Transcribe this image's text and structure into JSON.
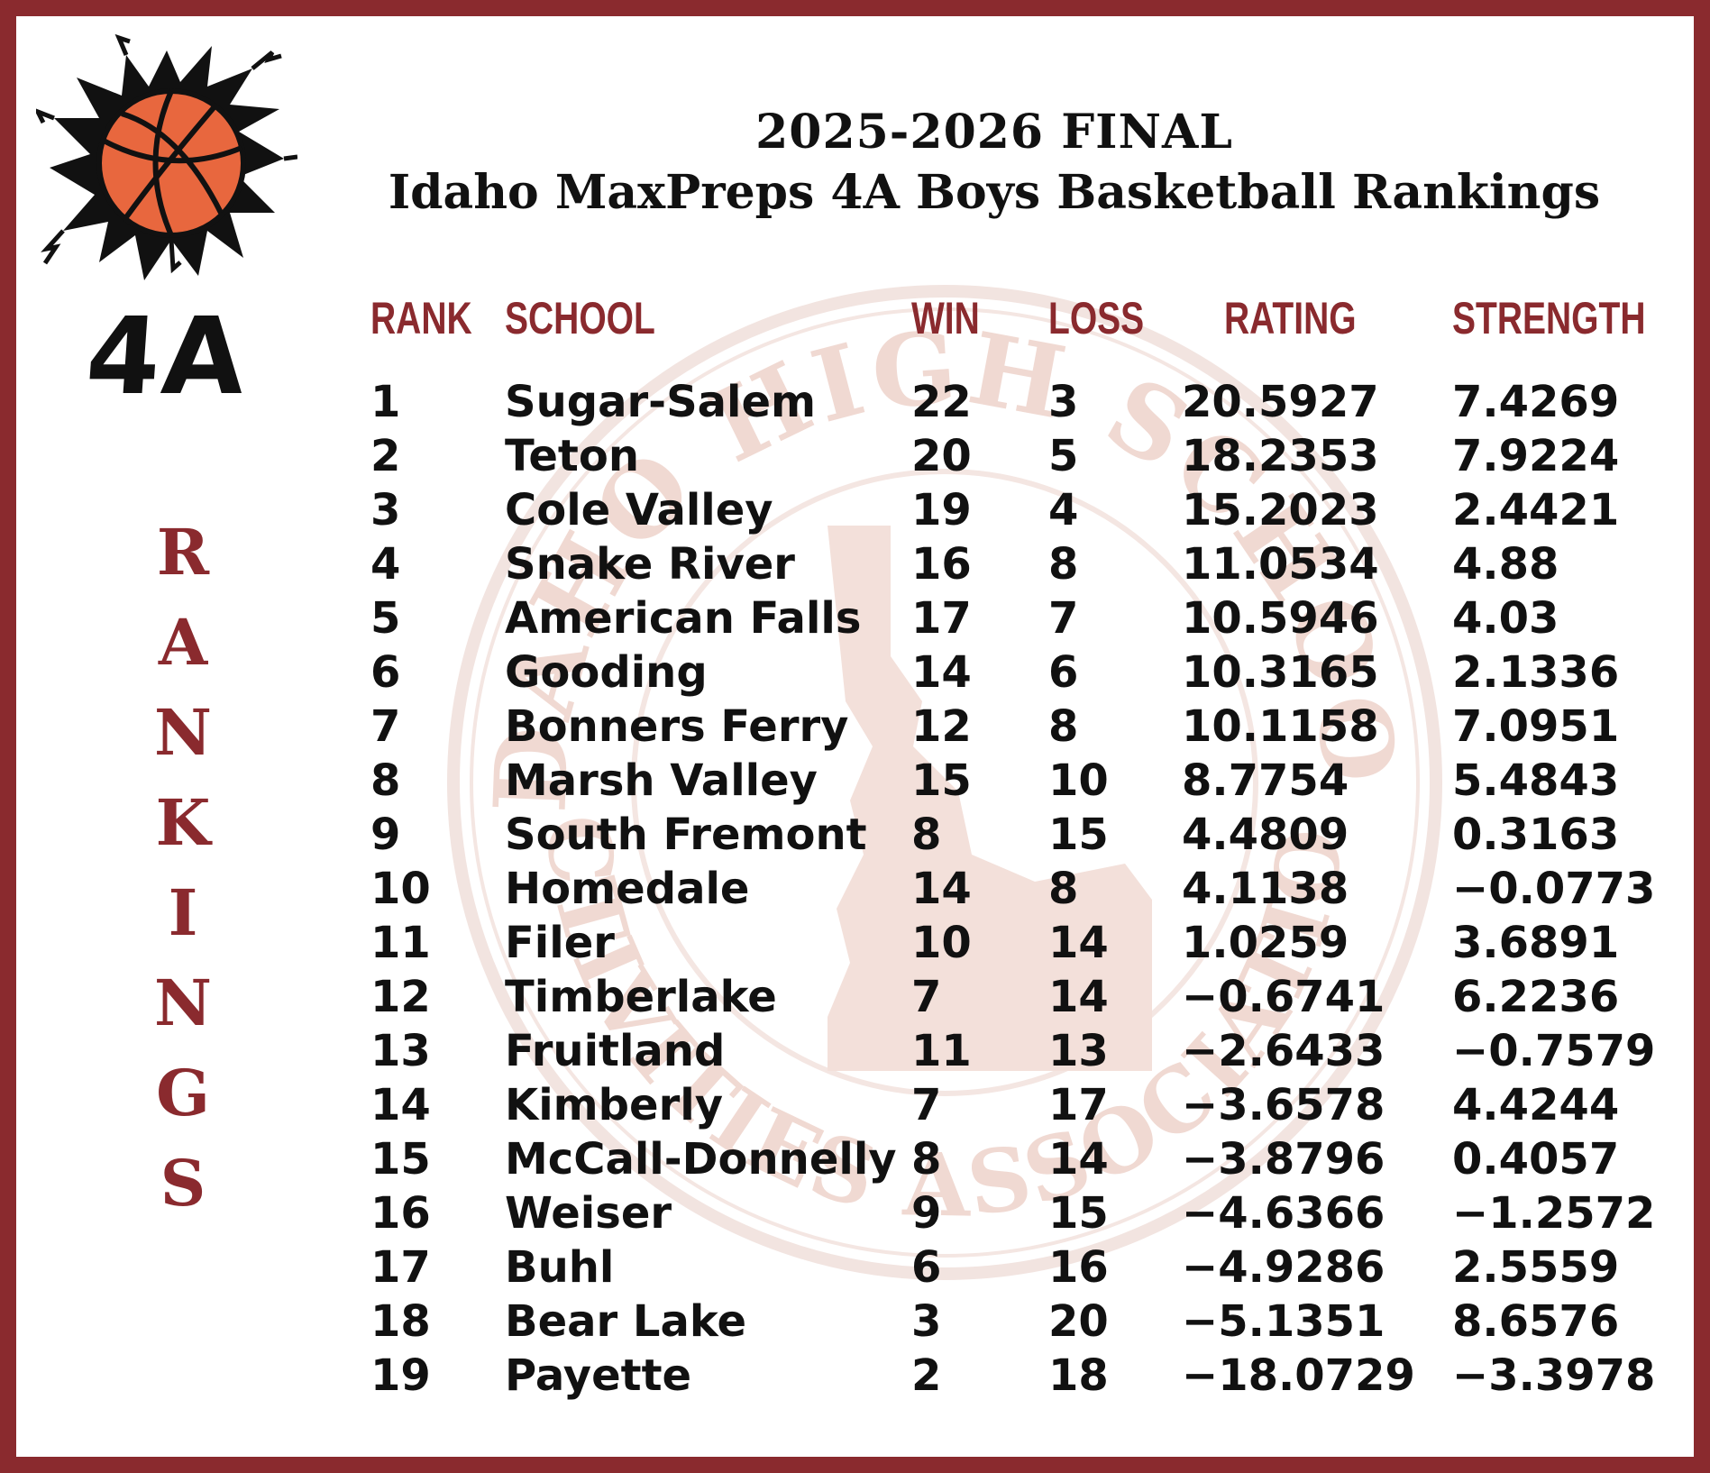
{
  "title": {
    "line1": "2025-2026 FINAL",
    "line2": "Idaho MaxPreps 4A Boys Basketball Rankings"
  },
  "sidebar": {
    "class_label": "4A",
    "vertical_word": [
      "R",
      "A",
      "N",
      "K",
      "I",
      "N",
      "G",
      "S"
    ]
  },
  "watermark": {
    "icon": "idaho-high-school-activities-association-seal",
    "text_top": "IDAHO HIGH SCHOOL",
    "text_bottom": "ACTIVITIES ASSOCIATION"
  },
  "logo": {
    "icon": "basketball-burst-icon"
  },
  "colors": {
    "accent": "#8a2a2e",
    "ball": "#e8673e",
    "watermark": "#f2ddd7"
  },
  "table": {
    "headers": {
      "rank": "RANK",
      "school": "SCHOOL",
      "win": "WIN",
      "loss": "LOSS",
      "rating": "RATING",
      "strength": "STRENGTH"
    },
    "rows": [
      {
        "rank": "1",
        "school": "Sugar-Salem",
        "win": "22",
        "loss": "3",
        "rating": "20.5927",
        "strength": "7.4269"
      },
      {
        "rank": "2",
        "school": "Teton",
        "win": "20",
        "loss": "5",
        "rating": "18.2353",
        "strength": "7.9224"
      },
      {
        "rank": "3",
        "school": "Cole Valley",
        "win": "19",
        "loss": "4",
        "rating": "15.2023",
        "strength": "2.4421"
      },
      {
        "rank": "4",
        "school": "Snake River",
        "win": "16",
        "loss": "8",
        "rating": "11.0534",
        "strength": "4.88"
      },
      {
        "rank": "5",
        "school": "American Falls",
        "win": "17",
        "loss": "7",
        "rating": "10.5946",
        "strength": "4.03"
      },
      {
        "rank": "6",
        "school": "Gooding",
        "win": "14",
        "loss": "6",
        "rating": "10.3165",
        "strength": "2.1336"
      },
      {
        "rank": "7",
        "school": "Bonners Ferry",
        "win": "12",
        "loss": "8",
        "rating": "10.1158",
        "strength": "7.0951"
      },
      {
        "rank": "8",
        "school": "Marsh Valley",
        "win": "15",
        "loss": "10",
        "rating": "8.7754",
        "strength": "5.4843"
      },
      {
        "rank": "9",
        "school": "South Fremont",
        "win": "8",
        "loss": "15",
        "rating": "4.4809",
        "strength": "0.3163"
      },
      {
        "rank": "10",
        "school": "Homedale",
        "win": "14",
        "loss": "8",
        "rating": "4.1138",
        "strength": "−0.0773"
      },
      {
        "rank": "11",
        "school": "Filer",
        "win": "10",
        "loss": "14",
        "rating": "1.0259",
        "strength": "3.6891"
      },
      {
        "rank": "12",
        "school": "Timberlake",
        "win": "7",
        "loss": "14",
        "rating": "−0.6741",
        "strength": "6.2236"
      },
      {
        "rank": "13",
        "school": "Fruitland",
        "win": "11",
        "loss": "13",
        "rating": "−2.6433",
        "strength": "−0.7579"
      },
      {
        "rank": "14",
        "school": "Kimberly",
        "win": "7",
        "loss": "17",
        "rating": "−3.6578",
        "strength": "4.4244"
      },
      {
        "rank": "15",
        "school": "McCall-Donnelly",
        "win": "8",
        "loss": "14",
        "rating": "−3.8796",
        "strength": "0.4057"
      },
      {
        "rank": "16",
        "school": "Weiser",
        "win": "9",
        "loss": "15",
        "rating": "−4.6366",
        "strength": "−1.2572"
      },
      {
        "rank": "17",
        "school": "Buhl",
        "win": "6",
        "loss": "16",
        "rating": "−4.9286",
        "strength": "2.5559"
      },
      {
        "rank": "18",
        "school": "Bear Lake",
        "win": "3",
        "loss": "20",
        "rating": "−5.1351",
        "strength": "8.6576"
      },
      {
        "rank": "19",
        "school": "Payette",
        "win": "2",
        "loss": "18",
        "rating": "−18.0729",
        "strength": "−3.3978"
      }
    ]
  }
}
